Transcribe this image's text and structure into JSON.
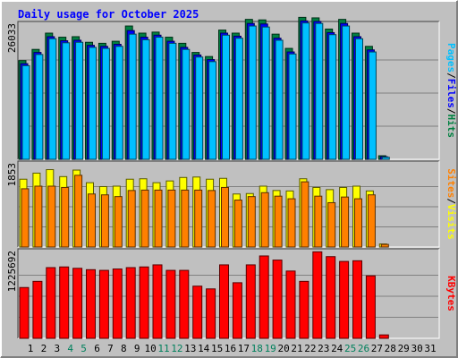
{
  "chart_data": {
    "type": "bar",
    "title": "Daily usage for October 2025",
    "categories": [
      "1",
      "2",
      "3",
      "4",
      "5",
      "6",
      "7",
      "8",
      "9",
      "10",
      "11",
      "12",
      "13",
      "14",
      "15",
      "16",
      "17",
      "18",
      "19",
      "20",
      "21",
      "22",
      "23",
      "24",
      "25",
      "26",
      "27",
      "28",
      "29",
      "30",
      "31"
    ],
    "weekend_days": [
      "4",
      "5",
      "11",
      "12",
      "18",
      "19",
      "25",
      "26"
    ],
    "panels": [
      {
        "id": "hits-files-pages",
        "y_tick_label": "26033",
        "ymax": 26033,
        "series": [
          {
            "name": "Hits",
            "color": "#008040",
            "values": [
              19400,
              21600,
              24800,
              24000,
              24100,
              23000,
              22800,
              23200,
              26200,
              24800,
              25000,
              24000,
              22800,
              21000,
              20200,
              25400,
              24800,
              27500,
              27400,
              24600,
              21800,
              27900,
              27800,
              25600,
              27500,
              24800,
              22200,
              700,
              null,
              null,
              null
            ]
          },
          {
            "name": "Files",
            "color": "#0000ff",
            "values": [
              18800,
              21000,
              24100,
              23300,
              23400,
              22400,
              22200,
              22600,
              25300,
              24000,
              24400,
              23200,
              22000,
              20500,
              19600,
              24800,
              24200,
              26700,
              26600,
              23800,
              21100,
              27200,
              27100,
              24900,
              26700,
              24100,
              21500,
              500,
              null,
              null,
              null
            ]
          },
          {
            "name": "Pages",
            "color": "#00c0ff",
            "values": [
              18400,
              20600,
              23700,
              22900,
              23000,
              22000,
              21800,
              22200,
              24600,
              23500,
              24000,
              22800,
              21600,
              20100,
              19200,
              24400,
              23800,
              26200,
              26000,
              23400,
              20700,
              26800,
              26700,
              24500,
              26200,
              23700,
              21100,
              400,
              null,
              null,
              null
            ]
          }
        ],
        "legend": [
          "Pages",
          "/",
          "Files",
          "/",
          "Hits"
        ]
      },
      {
        "id": "visits-sites",
        "y_tick_label": "1853",
        "ymax": 1853,
        "series": [
          {
            "name": "Visits",
            "color": "#ffff00",
            "values": [
              1560,
              1700,
              1780,
              1620,
              1770,
              1480,
              1390,
              1400,
              1560,
              1570,
              1480,
              1520,
              1600,
              1610,
              1560,
              1580,
              1220,
              1230,
              1400,
              1300,
              1290,
              1570,
              1370,
              1320,
              1370,
              1400,
              1290,
              70,
              null,
              null,
              null
            ]
          },
          {
            "name": "Sites",
            "color": "#ff8000",
            "values": [
              1340,
              1400,
              1400,
              1370,
              1650,
              1220,
              1200,
              1160,
              1300,
              1310,
              1310,
              1310,
              1310,
              1310,
              1300,
              1370,
              1080,
              1160,
              1250,
              1170,
              1110,
              1500,
              1170,
              1020,
              1150,
              1110,
              1200,
              60,
              null,
              null,
              null
            ]
          }
        ],
        "legend": [
          "Sites",
          "/",
          "Visits"
        ]
      },
      {
        "id": "kbytes",
        "y_tick_label": "1225692",
        "ymax": 1225692,
        "series": [
          {
            "name": "KBytes",
            "color": "#ff0000",
            "values": [
              740000,
              830000,
              1030000,
              1040000,
              1020000,
              1000000,
              990000,
              1010000,
              1030000,
              1040000,
              1070000,
              990000,
              990000,
              760000,
              720000,
              1070000,
              810000,
              1070000,
              1200000,
              1140000,
              980000,
              830000,
              1260000,
              1190000,
              1120000,
              1130000,
              910000,
              50000,
              null,
              null,
              null
            ]
          }
        ],
        "legend": [
          "KBytes"
        ]
      }
    ],
    "colors": {
      "background": "#c0c0c0",
      "frame_light": "#ffffff",
      "frame_dark": "#808080",
      "title": "#0000ff",
      "weekend_label": "#00805c",
      "weekday_label": "#000000"
    }
  }
}
